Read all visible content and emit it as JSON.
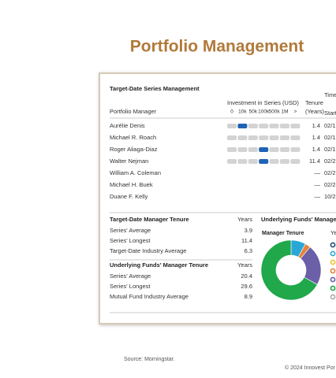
{
  "title": "Portfolio Management",
  "management": {
    "heading": "Target-Date Series Management",
    "timeline_heading": "Timel",
    "investment_heading": "Investment in Series (USD)",
    "buckets": [
      "0",
      "10k",
      "50k",
      "100k",
      "500k",
      "1M",
      ">"
    ],
    "tenure_heading": [
      "Tenure",
      "(Years)"
    ],
    "start_heading": "Start",
    "manager_heading": "Portfolio Manager",
    "managers": [
      {
        "name": "Aurélie Denis",
        "bar": true,
        "bucket": 1,
        "tenure": 1.4,
        "start": "02/1"
      },
      {
        "name": "Michael R. Roach",
        "bar": true,
        "bucket": null,
        "tenure": 1.4,
        "start": "02/1"
      },
      {
        "name": "Roger Aliaga-Diaz",
        "bar": true,
        "bucket": 3,
        "tenure": 1.4,
        "start": "02/1"
      },
      {
        "name": "Walter Nejman",
        "bar": true,
        "bucket": 3,
        "tenure": 11.4,
        "start": "02/2"
      },
      {
        "name": "William A. Coleman",
        "bar": false,
        "bucket": null,
        "tenure": "—",
        "start": "02/2"
      },
      {
        "name": "Michael H. Buek",
        "bar": false,
        "bucket": null,
        "tenure": "—",
        "start": "02/2"
      },
      {
        "name": "Duane F. Kelly",
        "bar": false,
        "bucket": null,
        "tenure": "—",
        "start": "10/2"
      }
    ]
  },
  "tenure_tables": [
    {
      "heading": "Target-Date Manager Tenure",
      "unit": "Years",
      "rows": [
        [
          "Series' Average",
          3.9
        ],
        [
          "Series' Longest",
          11.4
        ],
        [
          "Target-Date Industry Average",
          6.3
        ]
      ]
    },
    {
      "heading": "Underlying Funds' Manager Tenure",
      "unit": "Years",
      "rows": [
        [
          "Series' Average",
          20.4
        ],
        [
          "Series' Longest",
          29.6
        ],
        [
          "Mutual Fund Industry Average",
          8.9
        ]
      ]
    }
  ],
  "chart_data": {
    "type": "donut",
    "title": "Underlying Funds' Managem",
    "subtitle": "Manager Tenure",
    "legend_heading": "Ye",
    "colors": [
      "#1f4e79",
      "#29a8d8",
      "#f2c12e",
      "#e8833a",
      "#6b5fa8",
      "#20a84a",
      "#aaaaaa"
    ],
    "values": [
      0,
      8,
      0,
      3,
      22,
      67,
      0
    ]
  },
  "source": "Source: Morningstar.",
  "copyright": "© 2024 Innovest Por"
}
